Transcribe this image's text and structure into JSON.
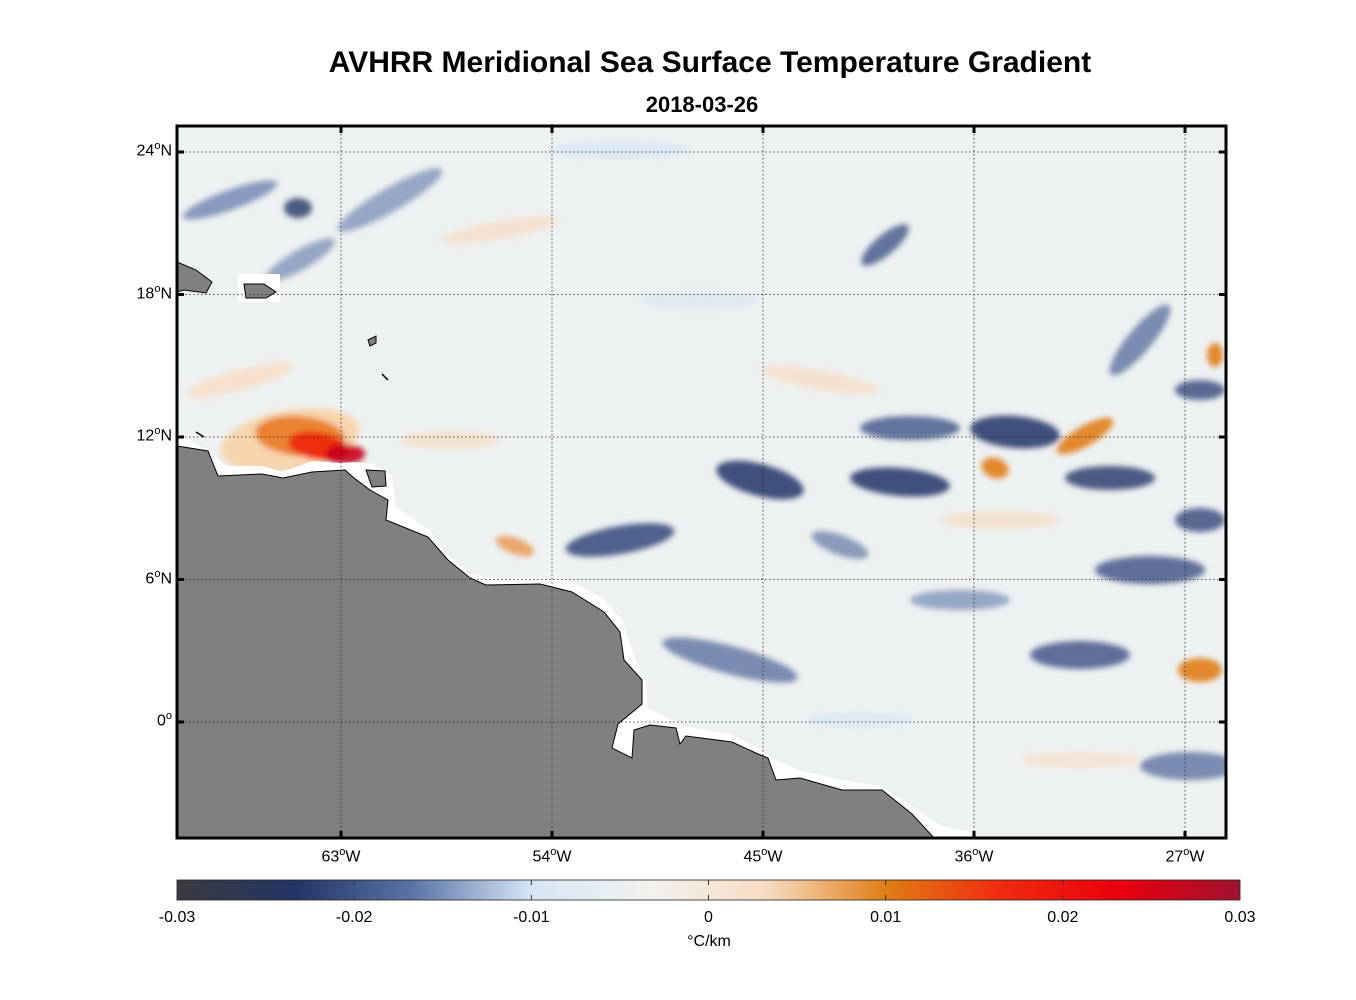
{
  "header": {
    "title": "AVHRR Meridional Sea Surface Temperature Gradient",
    "date": "2018-03-26"
  },
  "axes": {
    "lat_ticks": [
      {
        "value": 24,
        "deg": "24",
        "hemi": "N"
      },
      {
        "value": 18,
        "deg": "18",
        "hemi": "N"
      },
      {
        "value": 12,
        "deg": "12",
        "hemi": "N"
      },
      {
        "value": 6,
        "deg": "6",
        "hemi": "N"
      },
      {
        "value": 0,
        "deg": "0",
        "hemi": ""
      }
    ],
    "lon_ticks": [
      {
        "value": -63,
        "deg": "63",
        "hemi": "W"
      },
      {
        "value": -54,
        "deg": "54",
        "hemi": "W"
      },
      {
        "value": -45,
        "deg": "45",
        "hemi": "W"
      },
      {
        "value": -36,
        "deg": "36",
        "hemi": "W"
      },
      {
        "value": -27,
        "deg": "27",
        "hemi": "W"
      }
    ]
  },
  "colorbar": {
    "min": -0.03,
    "max": 0.03,
    "units": "°C/km",
    "tick_labels": [
      "-0.03",
      "-0.02",
      "-0.01",
      "0",
      "0.01",
      "0.02",
      "0.03"
    ],
    "colors": [
      "#3a3a3e",
      "#233566",
      "#5b74a8",
      "#d6e6f5",
      "#f2f2ef",
      "#f7dcc2",
      "#e07d14",
      "#f02a0e",
      "#e8000e",
      "#a01230"
    ]
  },
  "land_color": "#808080",
  "ocean_base_color": "#eef1f1"
}
